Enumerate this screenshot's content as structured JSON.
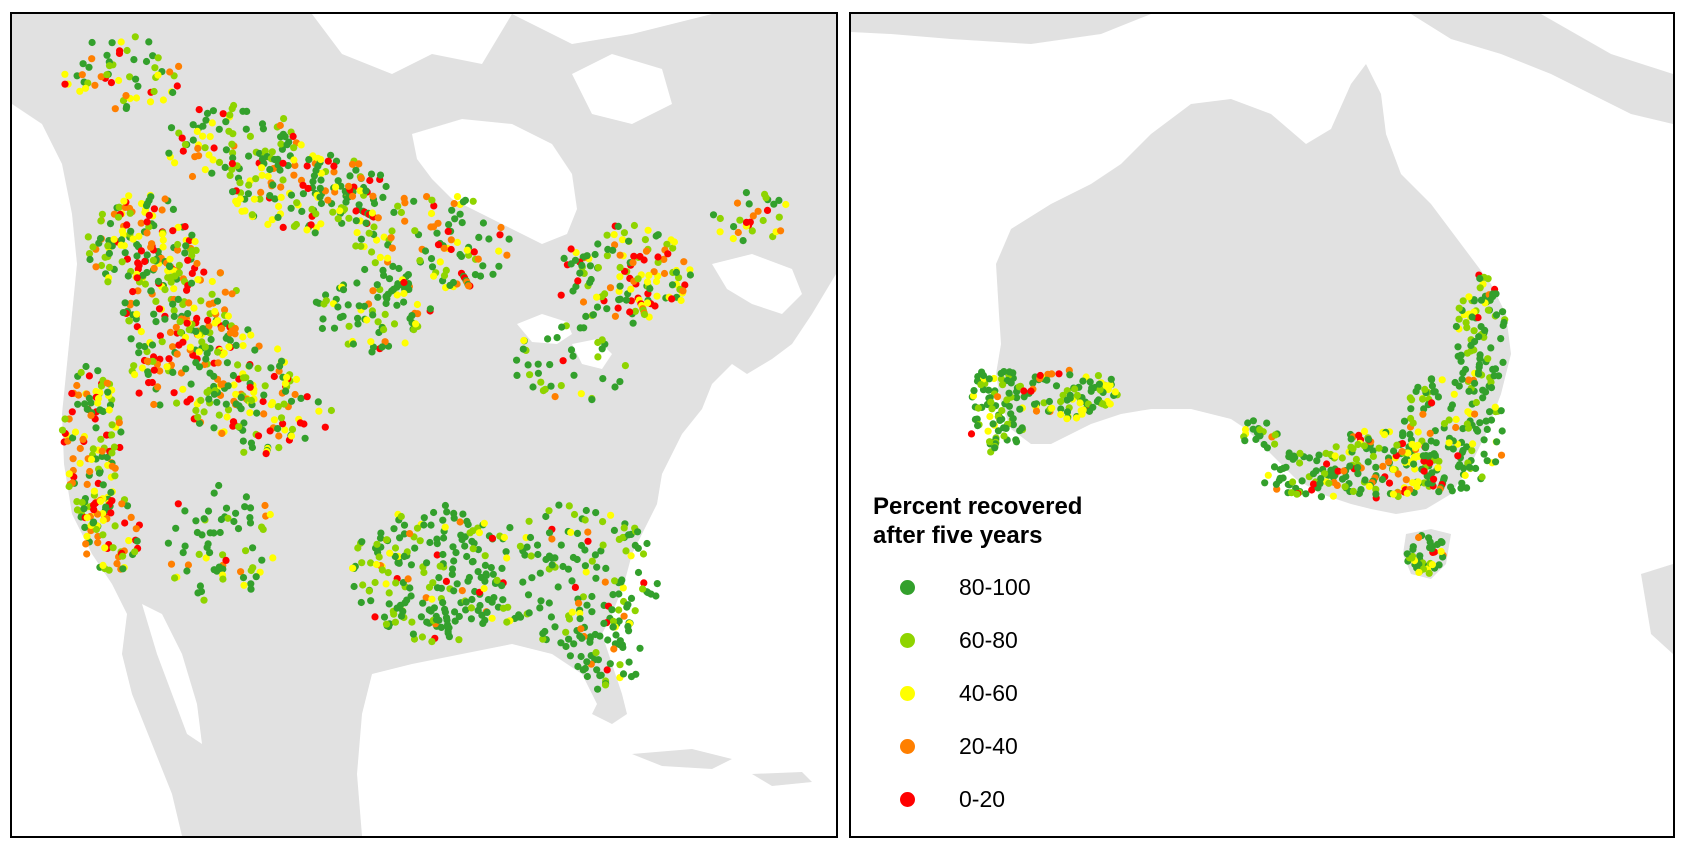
{
  "legend": {
    "title": "Percent recovered\nafter five years",
    "items": [
      {
        "label": "80-100",
        "color": "#33a02c",
        "range": [
          80,
          100
        ]
      },
      {
        "label": "60-80",
        "color": "#8fd400",
        "range": [
          60,
          80
        ]
      },
      {
        "label": "40-60",
        "color": "#ffff00",
        "range": [
          40,
          60
        ]
      },
      {
        "label": "20-40",
        "color": "#ff7f00",
        "range": [
          20,
          40
        ]
      },
      {
        "label": "0-20",
        "color": "#ff0000",
        "range": [
          0,
          20
        ]
      }
    ]
  },
  "colors": {
    "land": "#e1e1e1",
    "water": "#ffffff",
    "frame": "#000000"
  },
  "maps": [
    {
      "region": "North America",
      "dominant_class": "80-100",
      "mixed_west": true
    },
    {
      "region": "Australia",
      "dominant_class": "80-100"
    }
  ]
}
